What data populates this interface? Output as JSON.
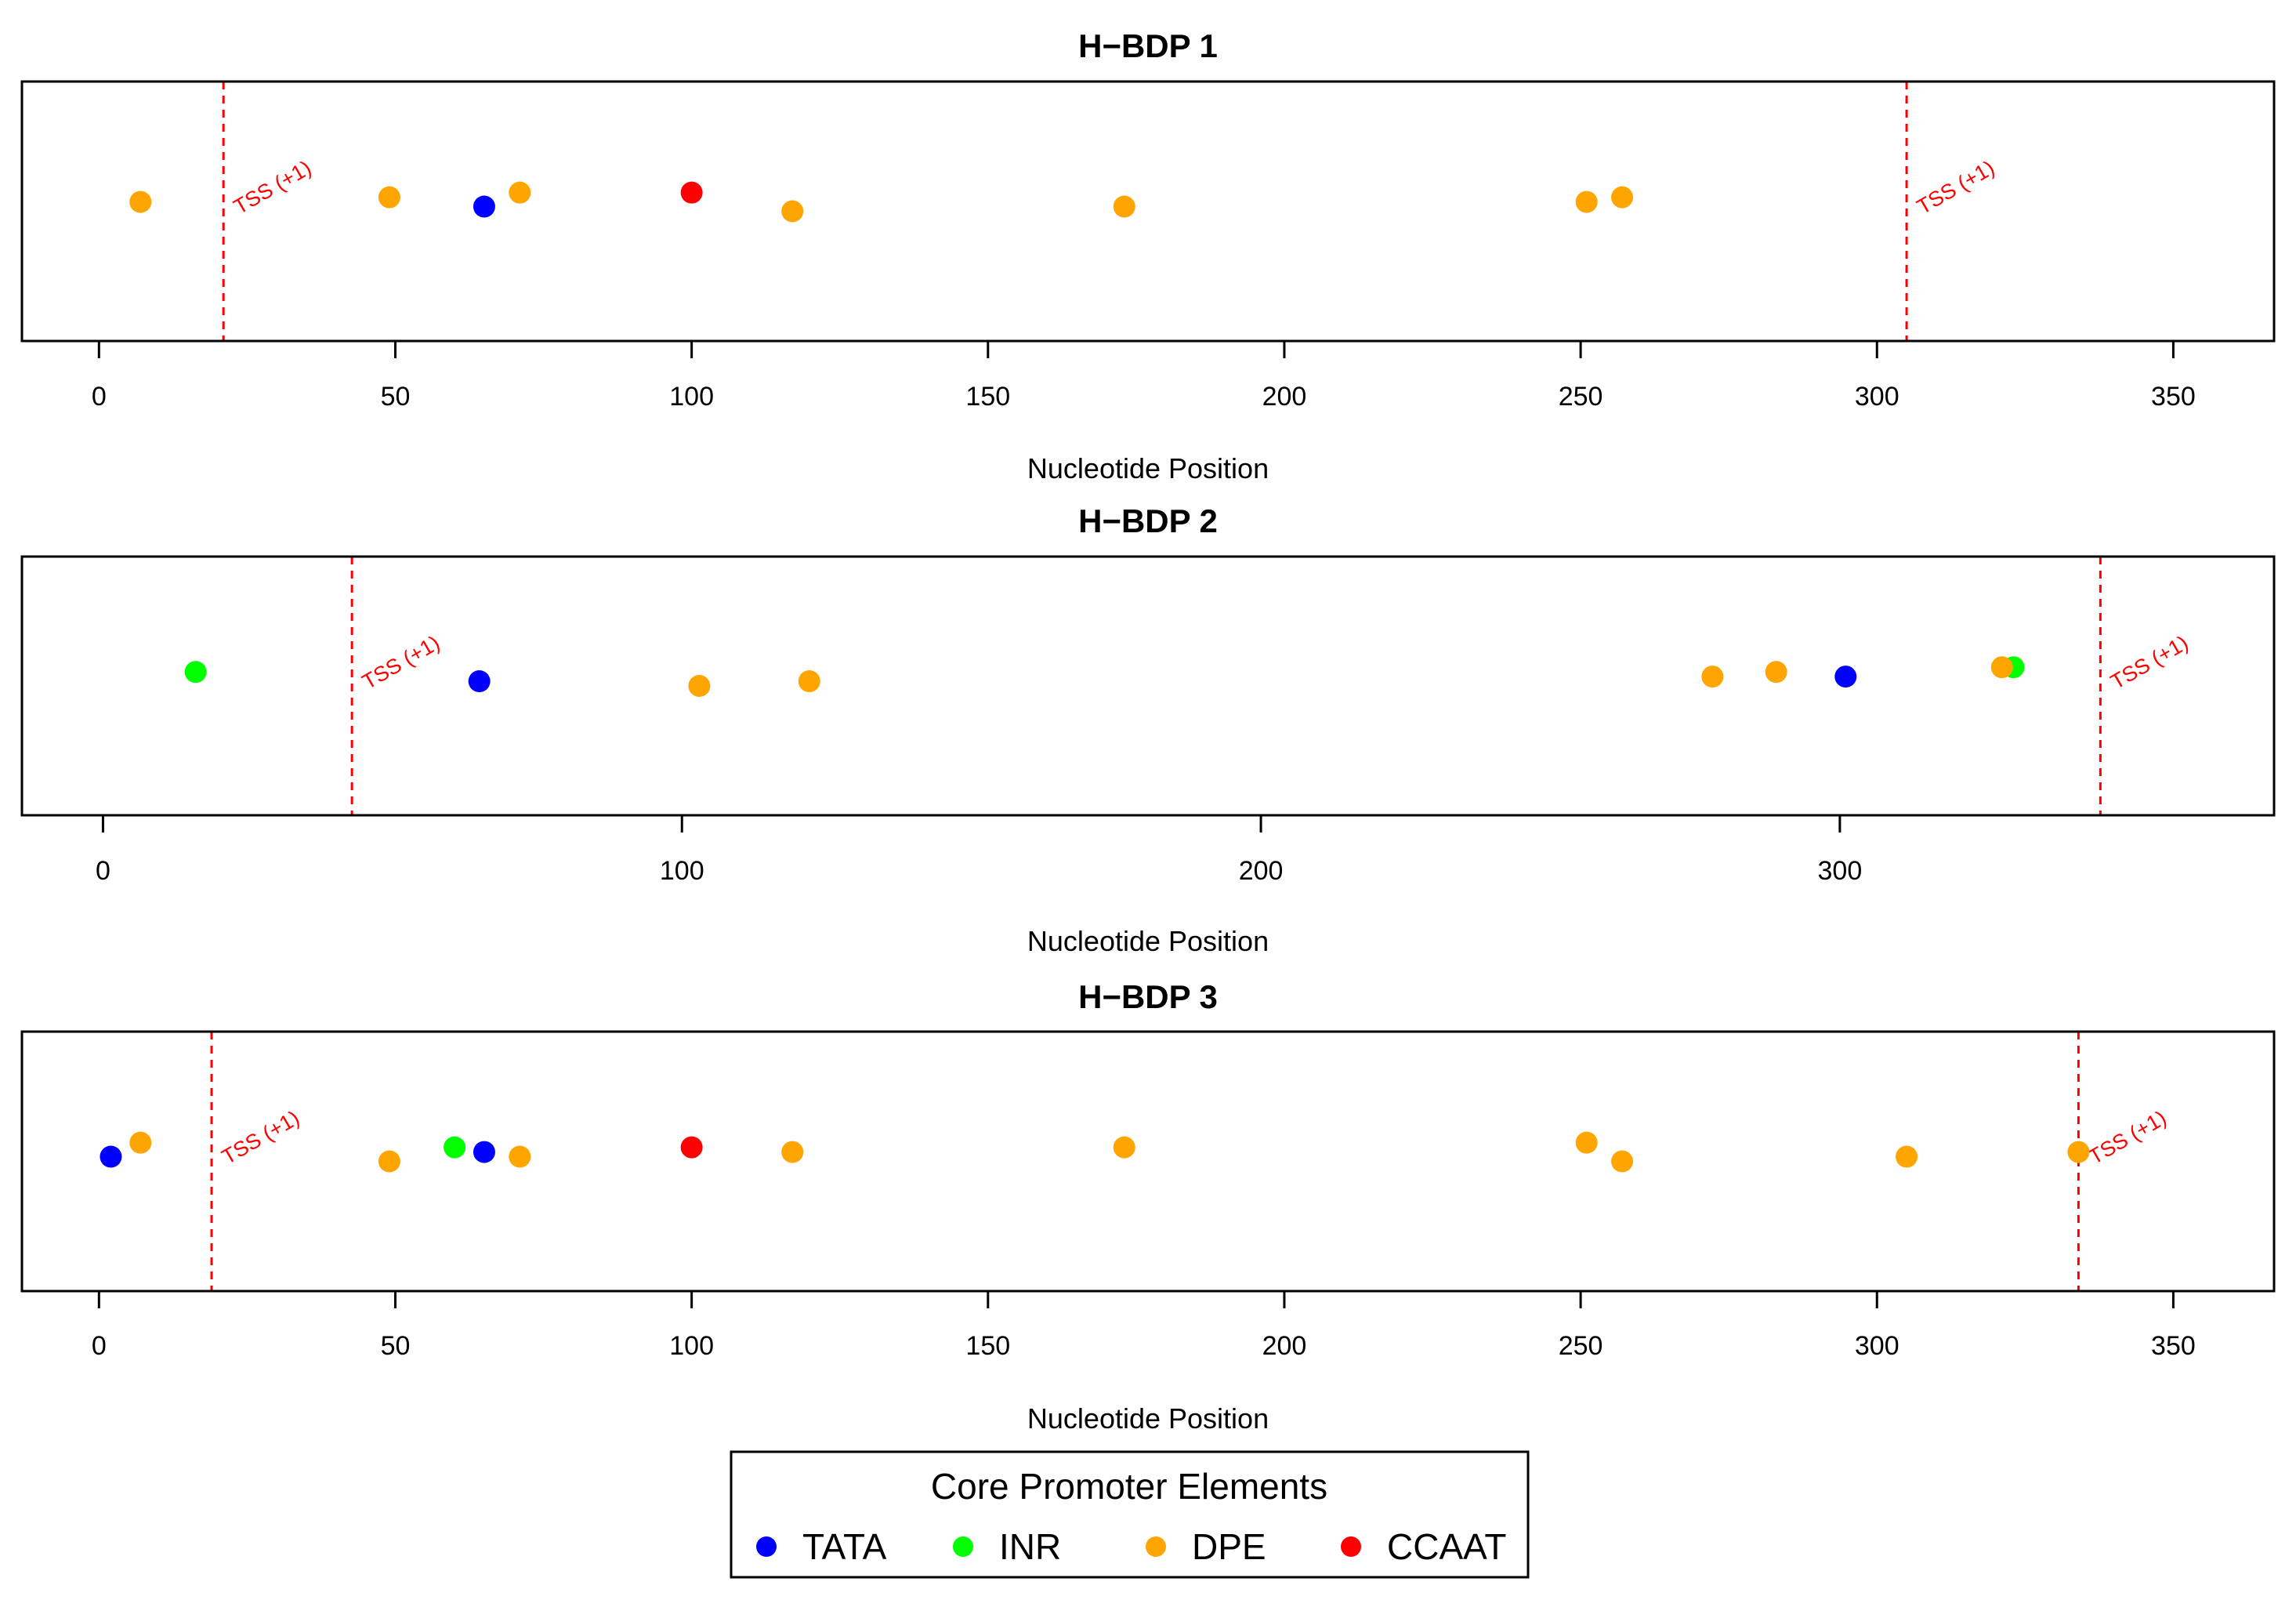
{
  "chart_data": [
    {
      "type": "scatter",
      "title": "H−BDP 1",
      "xlabel": "Nucleotide Position",
      "xlim": [
        -13,
        367
      ],
      "xticks": [
        0,
        50,
        100,
        150,
        200,
        250,
        300,
        350
      ],
      "yaxis": "hidden",
      "tss_positions": [
        21,
        305
      ],
      "tss_label": "TSS (+1)",
      "points": [
        {
          "x": 7,
          "y": 0.2,
          "element": "DPE"
        },
        {
          "x": 49,
          "y": 0.3,
          "element": "DPE"
        },
        {
          "x": 65,
          "y": 0.1,
          "element": "TATA"
        },
        {
          "x": 71,
          "y": 0.4,
          "element": "DPE"
        },
        {
          "x": 100,
          "y": 0.4,
          "element": "CCAAT"
        },
        {
          "x": 117,
          "y": 0.0,
          "element": "DPE"
        },
        {
          "x": 173,
          "y": 0.1,
          "element": "DPE"
        },
        {
          "x": 251,
          "y": 0.2,
          "element": "DPE"
        },
        {
          "x": 257,
          "y": 0.3,
          "element": "DPE"
        }
      ]
    },
    {
      "type": "scatter",
      "title": "H−BDP 2",
      "xlabel": "Nucleotide Position",
      "xlim": [
        -14,
        375
      ],
      "xticks": [
        0,
        100,
        200,
        300
      ],
      "yaxis": "hidden",
      "tss_positions": [
        43,
        345
      ],
      "tss_label": "TSS (+1)",
      "points": [
        {
          "x": 16,
          "y": 0.3,
          "element": "INR"
        },
        {
          "x": 65,
          "y": 0.1,
          "element": "TATA"
        },
        {
          "x": 103,
          "y": 0.0,
          "element": "DPE"
        },
        {
          "x": 122,
          "y": 0.1,
          "element": "DPE"
        },
        {
          "x": 278,
          "y": 0.2,
          "element": "DPE"
        },
        {
          "x": 289,
          "y": 0.3,
          "element": "DPE"
        },
        {
          "x": 301,
          "y": 0.2,
          "element": "TATA"
        },
        {
          "x": 330,
          "y": 0.4,
          "element": "INR"
        },
        {
          "x": 328,
          "y": 0.4,
          "element": "DPE"
        }
      ]
    },
    {
      "type": "scatter",
      "title": "H−BDP 3",
      "xlabel": "Nucleotide Position",
      "xlim": [
        -13,
        367
      ],
      "xticks": [
        0,
        50,
        100,
        150,
        200,
        250,
        300,
        350
      ],
      "yaxis": "hidden",
      "tss_positions": [
        19,
        334
      ],
      "tss_label": "TSS (+1)",
      "points": [
        {
          "x": 2,
          "y": 0.1,
          "element": "TATA"
        },
        {
          "x": 7,
          "y": 0.4,
          "element": "DPE"
        },
        {
          "x": 49,
          "y": 0.0,
          "element": "DPE"
        },
        {
          "x": 60,
          "y": 0.3,
          "element": "INR"
        },
        {
          "x": 65,
          "y": 0.2,
          "element": "TATA"
        },
        {
          "x": 71,
          "y": 0.1,
          "element": "DPE"
        },
        {
          "x": 100,
          "y": 0.3,
          "element": "CCAAT"
        },
        {
          "x": 117,
          "y": 0.2,
          "element": "DPE"
        },
        {
          "x": 173,
          "y": 0.3,
          "element": "DPE"
        },
        {
          "x": 251,
          "y": 0.4,
          "element": "DPE"
        },
        {
          "x": 257,
          "y": 0.0,
          "element": "DPE"
        },
        {
          "x": 305,
          "y": 0.1,
          "element": "DPE"
        },
        {
          "x": 334,
          "y": 0.2,
          "element": "DPE"
        }
      ]
    }
  ],
  "legend": {
    "title": "Core Promoter Elements",
    "placement": "bottom-center",
    "items": [
      {
        "label": "TATA",
        "color": "#0000ff"
      },
      {
        "label": "INR",
        "color": "#00ff00"
      },
      {
        "label": "DPE",
        "color": "#ffa500"
      },
      {
        "label": "CCAAT",
        "color": "#ff0000"
      }
    ]
  },
  "colors": {
    "TATA": "#0000ff",
    "INR": "#00ff00",
    "DPE": "#ffa500",
    "CCAAT": "#ff0000",
    "tss_line": "#ff0000"
  }
}
